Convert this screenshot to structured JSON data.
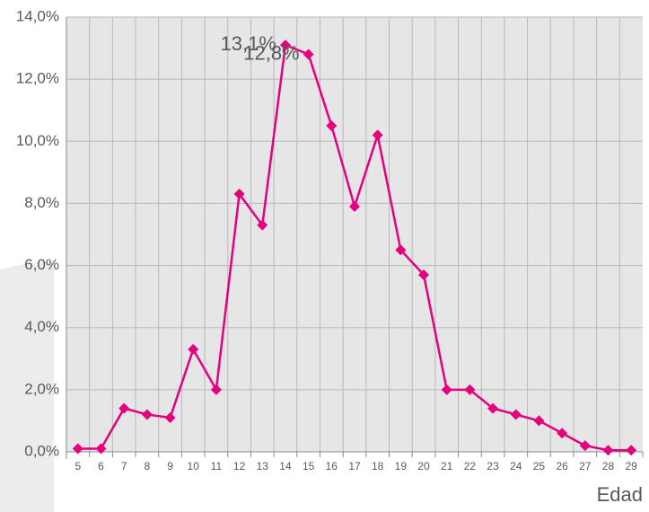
{
  "chart_data": {
    "type": "line",
    "x_label": "Edad",
    "categories": [
      "5",
      "6",
      "7",
      "8",
      "9",
      "10",
      "11",
      "12",
      "13",
      "14",
      "15",
      "16",
      "17",
      "18",
      "19",
      "20",
      "21",
      "22",
      "23",
      "24",
      "25",
      "26",
      "27",
      "28",
      "29"
    ],
    "series": [
      {
        "name": null,
        "color": "#e5007e",
        "values": [
          0.1,
          0.1,
          1.4,
          1.2,
          1.1,
          3.3,
          2.0,
          8.3,
          7.3,
          13.1,
          12.8,
          10.5,
          7.9,
          10.2,
          6.5,
          5.7,
          2.0,
          2.0,
          1.4,
          1.2,
          1.0,
          0.6,
          0.2,
          0.05,
          0.05
        ],
        "value_labels": [
          null,
          null,
          null,
          null,
          null,
          null,
          null,
          null,
          null,
          "13,1%",
          "12,8%",
          null,
          null,
          null,
          null,
          null,
          null,
          null,
          null,
          null,
          null,
          null,
          null,
          null,
          null
        ]
      }
    ],
    "ylim": [
      0,
      14
    ],
    "yticks": [
      {
        "value": 0,
        "label": "0,0%"
      },
      {
        "value": 2,
        "label": "2,0%"
      },
      {
        "value": 4,
        "label": "4,0%"
      },
      {
        "value": 6,
        "label": "6,0%"
      },
      {
        "value": 8,
        "label": "8,0%"
      },
      {
        "value": 10,
        "label": "10,0%"
      },
      {
        "value": 12,
        "label": "12,0%"
      },
      {
        "value": 14,
        "label": "14,0%"
      }
    ],
    "grid": true
  }
}
